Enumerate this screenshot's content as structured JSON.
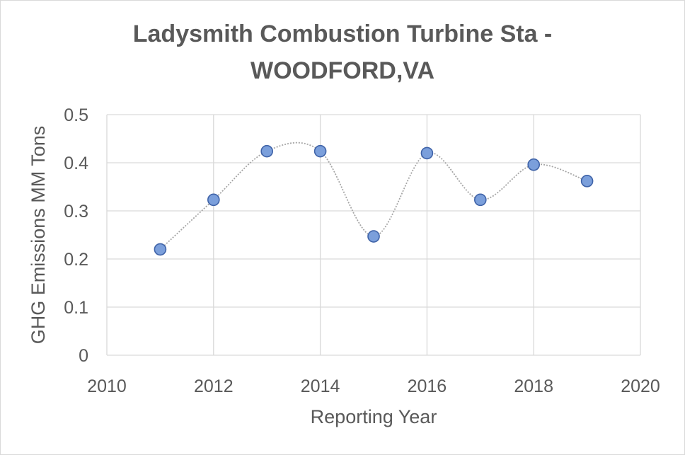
{
  "chart_data": {
    "type": "scatter",
    "title_line1": "Ladysmith Combustion Turbine Sta -",
    "title_line2": "WOODFORD,VA",
    "xlabel": "Reporting Year",
    "ylabel": "GHG Emissions MM Tons",
    "xlim": [
      2010,
      2020
    ],
    "ylim": [
      0,
      0.5
    ],
    "x_ticks": [
      2010,
      2012,
      2014,
      2016,
      2018,
      2020
    ],
    "y_ticks": [
      0,
      0.1,
      0.2,
      0.3,
      0.4,
      0.5
    ],
    "grid": true,
    "smooth_line": true,
    "series": [
      {
        "name": "GHG Emissions",
        "x": [
          2011,
          2012,
          2013,
          2014,
          2015,
          2016,
          2017,
          2018,
          2019
        ],
        "y": [
          0.22,
          0.323,
          0.424,
          0.424,
          0.247,
          0.42,
          0.323,
          0.396,
          0.362
        ]
      }
    ],
    "colors": {
      "marker_fill": "#7b9fdb",
      "marker_stroke": "#3f63a8",
      "line": "#a6a6a6",
      "grid": "#d9d9d9",
      "text": "#595959"
    }
  }
}
